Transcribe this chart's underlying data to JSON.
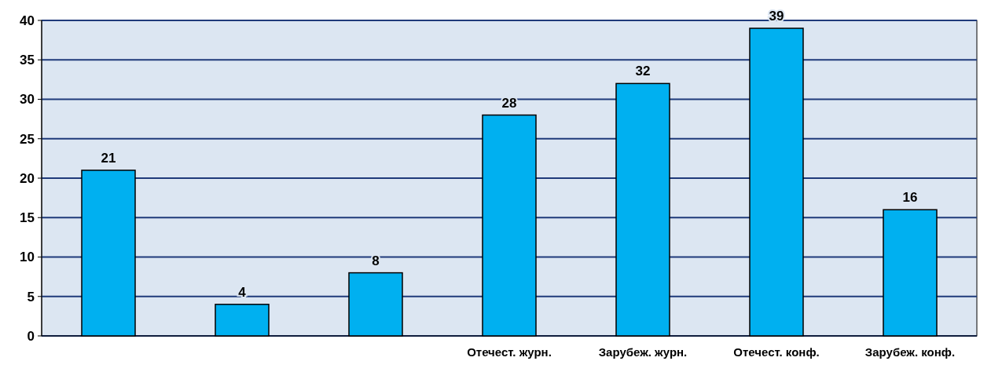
{
  "chart_data": {
    "type": "bar",
    "categories": [
      null,
      null,
      null,
      "Отечест. журн.",
      "Зарубеж. журн.",
      "Отечест. конф.",
      "Зарубеж. конф."
    ],
    "values": [
      21,
      4,
      8,
      28,
      32,
      39,
      16
    ],
    "color": "#00b0f0",
    "ylim": [
      0,
      40
    ],
    "yticks": [
      0,
      5,
      10,
      15,
      20,
      25,
      30,
      35,
      40
    ],
    "grid": "y",
    "data_labels": true
  }
}
